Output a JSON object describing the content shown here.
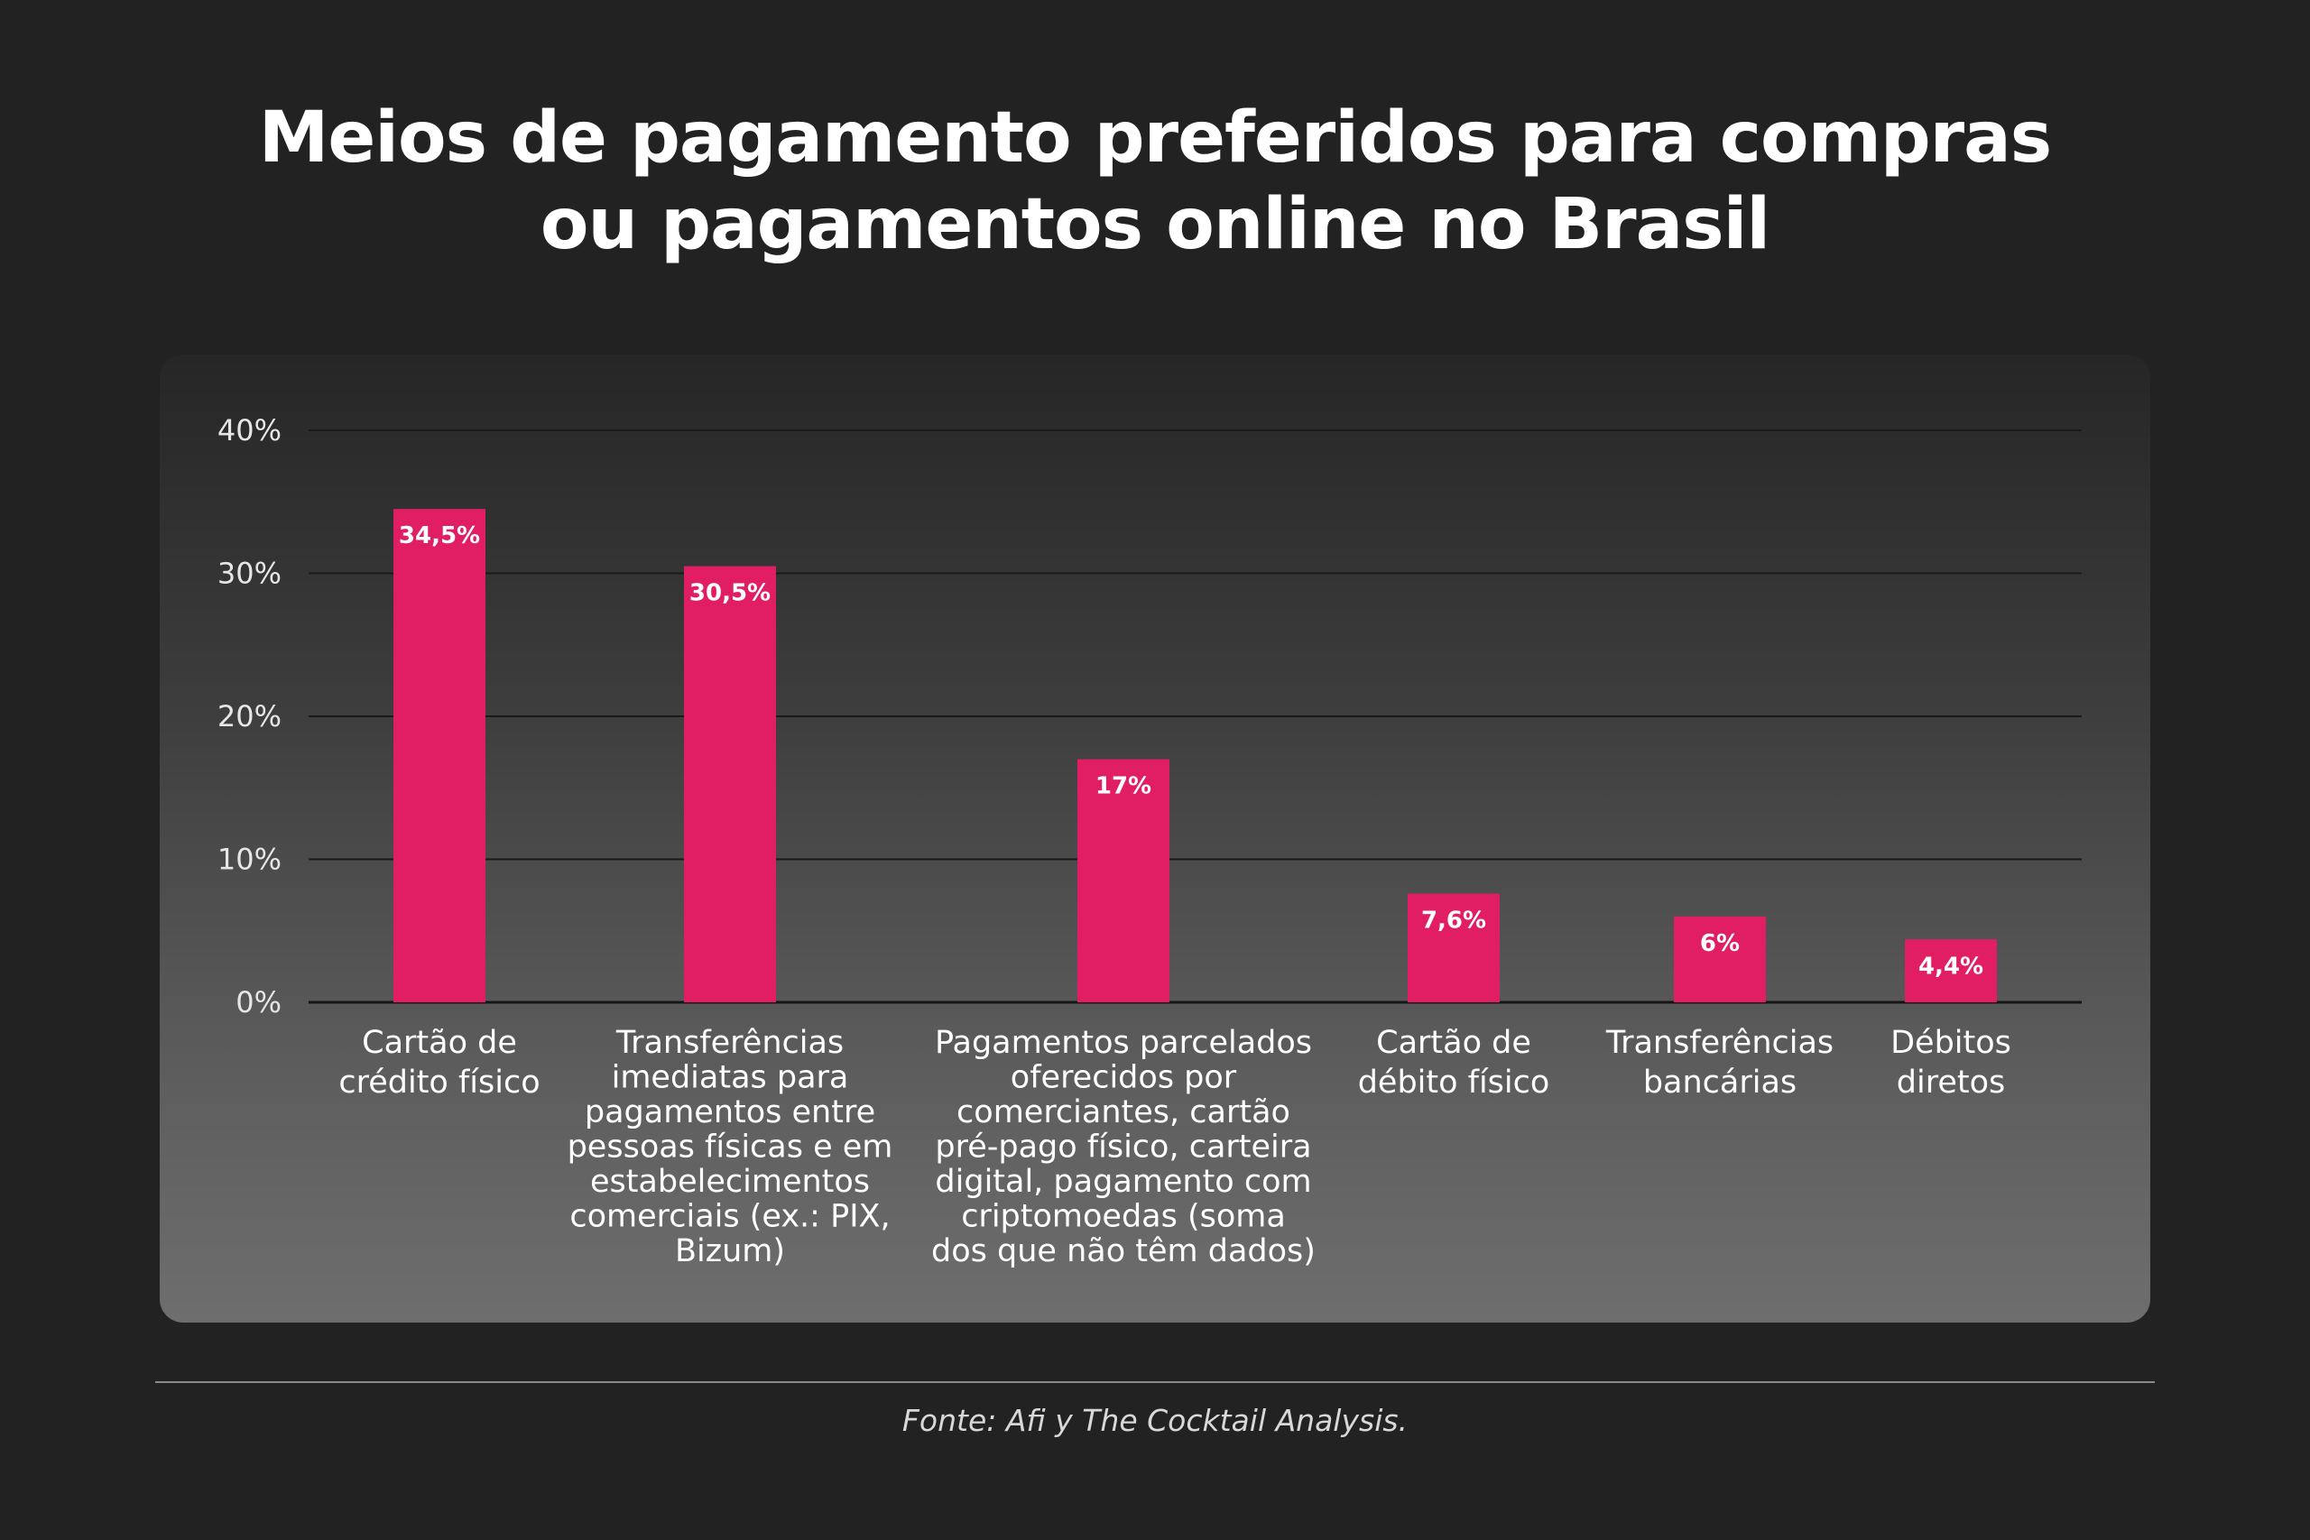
{
  "title_lines": [
    "Meios de pagamento preferidos para compras",
    "ou pagamentos online no Brasil"
  ],
  "source": "Fonte: Afi y The Cocktail Analysis.",
  "colors": {
    "bar": "#E11E63",
    "background": "#222222",
    "grid": "#1a1a1a"
  },
  "chart_data": {
    "type": "bar",
    "title": "Meios de pagamento preferidos para compras ou pagamentos online no Brasil",
    "xlabel": "",
    "ylabel": "",
    "ylim": [
      0,
      40
    ],
    "yticks": [
      0,
      10,
      20,
      30,
      40
    ],
    "ytick_labels": [
      "0%",
      "10%",
      "20%",
      "30%",
      "40%"
    ],
    "grid": true,
    "categories": [
      [
        "Cartão de",
        "crédito físico"
      ],
      [
        "Transferências",
        "imediatas para",
        "pagamentos entre",
        "pessoas físicas e em",
        "estabelecimentos",
        "comerciais (ex.: PIX,",
        "Bizum)"
      ],
      [
        "Pagamentos parcelados",
        "oferecidos por",
        "comerciantes, cartão",
        "pré-pago físico, carteira",
        "digital, pagamento com",
        "criptomoedas (soma",
        "dos que não têm dados)"
      ],
      [
        "Cartão de",
        "débito físico"
      ],
      [
        "Transferências",
        "bancárias"
      ],
      [
        "Débitos",
        "diretos"
      ]
    ],
    "values": [
      34.5,
      30.5,
      17,
      7.6,
      6,
      4.4
    ],
    "data_labels": [
      "34,5%",
      "30,5%",
      "17%",
      "7,6%",
      "6%",
      "4,4%"
    ]
  }
}
